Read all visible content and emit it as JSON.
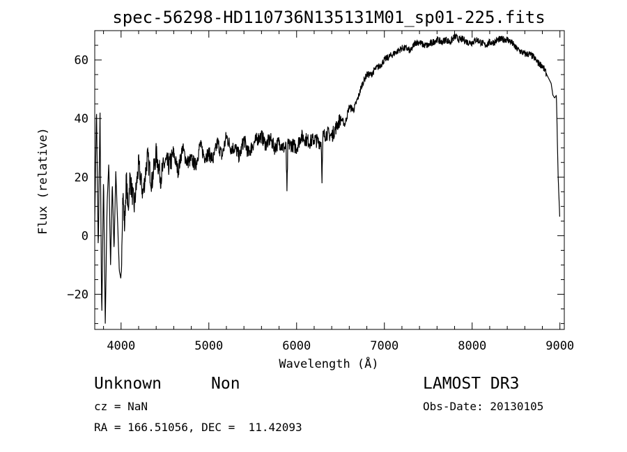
{
  "chart_data": {
    "type": "line",
    "title": "spec-56298-HD110736N135131M01_sp01-225.fits",
    "xlabel": "Wavelength (Å)",
    "ylabel": "Flux (relative)",
    "xlim": [
      3700,
      9050
    ],
    "ylim": [
      -32,
      70
    ],
    "xticks": [
      4000,
      5000,
      6000,
      7000,
      8000,
      9000
    ],
    "yticks": [
      -20,
      0,
      20,
      40,
      60
    ],
    "grid": false,
    "series": [
      {
        "x": [
          3700,
          3720,
          3740,
          3760,
          3780,
          3800,
          3820,
          3840,
          3860,
          3880,
          3900,
          3920,
          3940,
          3960,
          3980,
          4000,
          4020,
          4040,
          4060,
          4080,
          4100,
          4150,
          4200,
          4250,
          4300,
          4350,
          4400,
          4450,
          4500,
          4550,
          4600,
          4650,
          4700,
          4750,
          4800,
          4850,
          4900,
          4950,
          5000,
          5050,
          5100,
          5150,
          5200,
          5250,
          5300,
          5350,
          5400,
          5450,
          5500,
          5550,
          5600,
          5650,
          5700,
          5750,
          5800,
          5850,
          5880,
          5890,
          5900,
          5950,
          6000,
          6050,
          6100,
          6150,
          6200,
          6250,
          6280,
          6290,
          6300,
          6350,
          6400,
          6450,
          6500,
          6550,
          6600,
          6650,
          6700,
          6750,
          6800,
          6850,
          6900,
          6950,
          7000,
          7050,
          7100,
          7150,
          7200,
          7250,
          7300,
          7350,
          7400,
          7450,
          7500,
          7550,
          7600,
          7650,
          7700,
          7750,
          7800,
          7850,
          7900,
          7950,
          8000,
          8050,
          8100,
          8150,
          8200,
          8250,
          8300,
          8350,
          8400,
          8450,
          8500,
          8550,
          8600,
          8650,
          8700,
          8750,
          8800,
          8850,
          8900,
          8920,
          8940,
          8960,
          8980,
          9000
        ],
        "values": [
          5,
          44,
          -5,
          42,
          -28,
          20,
          -30,
          10,
          25,
          -10,
          18,
          -5,
          22,
          5,
          -12,
          -15,
          15,
          3,
          20,
          8,
          20,
          10,
          24,
          14,
          27,
          18,
          28,
          20,
          25,
          24,
          28,
          22,
          30,
          25,
          26,
          24,
          31,
          27,
          28,
          26,
          32,
          27,
          34,
          30,
          30,
          27,
          33,
          28,
          31,
          33,
          34,
          31,
          33,
          30,
          32,
          30,
          30,
          14,
          31,
          31,
          30,
          34,
          33,
          32,
          33,
          32,
          32,
          19,
          34,
          35,
          34,
          37,
          40,
          38,
          44,
          43,
          47,
          52,
          55,
          55,
          57,
          58,
          60,
          61,
          62,
          63,
          64,
          64,
          63,
          66,
          66,
          65,
          65,
          66,
          67,
          66,
          67,
          66,
          68,
          67,
          67,
          66,
          66,
          67,
          66,
          65,
          66,
          66,
          67,
          67,
          67,
          66,
          64,
          63,
          62,
          62,
          61,
          59,
          58,
          55,
          52,
          48,
          47,
          48,
          20,
          5
        ]
      }
    ]
  },
  "info": {
    "object_class": "Unknown",
    "object_subclass": "Non",
    "release": "LAMOST DR3",
    "cz": "cz = NaN",
    "obs_date": "Obs-Date: 20130105",
    "coords": "RA = 166.51056, DEC =  11.42093"
  }
}
